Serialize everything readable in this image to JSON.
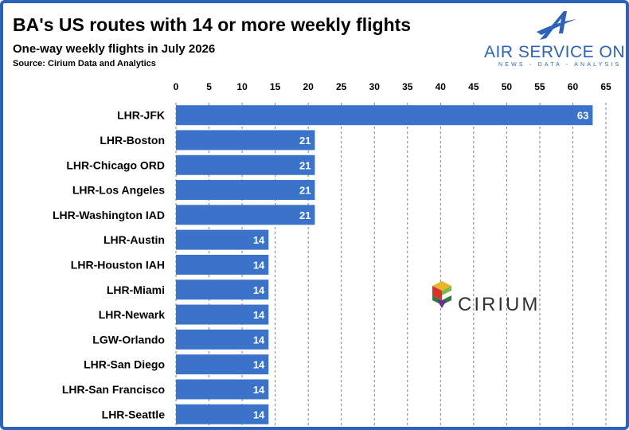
{
  "header": {
    "title": "BA's US routes with 14 or more weekly flights",
    "subtitle": "One-way weekly flights in July 2026",
    "source": "Source: Cirium Data and Analytics"
  },
  "brand": {
    "name": "AIR SERVICE ONE",
    "tagline": "NEWS - DATA - ANALYSIS",
    "color": "#2c63b8"
  },
  "watermark": {
    "name": "CIRIUM"
  },
  "colors": {
    "bar": "#3a73c9",
    "grid": "#7f7f7f",
    "frame": "#2c63b8"
  },
  "chart_data": {
    "type": "bar",
    "orientation": "horizontal",
    "categories": [
      "LHR-JFK",
      "LHR-Boston",
      "LHR-Chicago ORD",
      "LHR-Los Angeles",
      "LHR-Washington IAD",
      "LHR-Austin",
      "LHR-Houston IAH",
      "LHR-Miami",
      "LHR-Newark",
      "LGW-Orlando",
      "LHR-San Diego",
      "LHR-San Francisco",
      "LHR-Seattle"
    ],
    "values": [
      63,
      21,
      21,
      21,
      21,
      14,
      14,
      14,
      14,
      14,
      14,
      14,
      14
    ],
    "xlim": [
      0,
      65
    ],
    "xticks": [
      0,
      5,
      10,
      15,
      20,
      25,
      30,
      35,
      40,
      45,
      50,
      55,
      60,
      65
    ],
    "axis_position": "top",
    "grid": "vertical dashed",
    "data_labels": true
  }
}
